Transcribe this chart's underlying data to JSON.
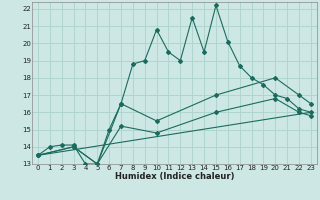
{
  "xlabel": "Humidex (Indice chaleur)",
  "bg_color": "#cde8e4",
  "grid_color": "#b0d4ce",
  "line_color": "#1a6b5e",
  "xlim": [
    -0.5,
    23.5
  ],
  "ylim": [
    13,
    22.4
  ],
  "xticks": [
    0,
    1,
    2,
    3,
    4,
    5,
    6,
    7,
    8,
    9,
    10,
    11,
    12,
    13,
    14,
    15,
    16,
    17,
    18,
    19,
    20,
    21,
    22,
    23
  ],
  "yticks": [
    13,
    14,
    15,
    16,
    17,
    18,
    19,
    20,
    21,
    22
  ],
  "line1_x": [
    0,
    1,
    2,
    3,
    4,
    5,
    6,
    7,
    8,
    9,
    10,
    11,
    12,
    13,
    14,
    15,
    16,
    17,
    18,
    19,
    20,
    21,
    22,
    23
  ],
  "line1_y": [
    13.5,
    14.0,
    14.1,
    14.1,
    13.0,
    13.0,
    15.0,
    16.5,
    18.8,
    19.0,
    20.8,
    19.5,
    19.0,
    21.5,
    19.5,
    22.2,
    20.1,
    18.7,
    18.0,
    17.6,
    17.0,
    16.8,
    16.2,
    16.0
  ],
  "line2_x": [
    0,
    3,
    5,
    7,
    10,
    15,
    20,
    22,
    23
  ],
  "line2_y": [
    13.5,
    14.0,
    13.0,
    16.5,
    15.5,
    17.0,
    18.0,
    17.0,
    16.5
  ],
  "line3_x": [
    0,
    3,
    5,
    7,
    10,
    15,
    20,
    22,
    23
  ],
  "line3_y": [
    13.5,
    14.0,
    13.0,
    15.2,
    14.8,
    16.0,
    16.8,
    16.0,
    15.8
  ],
  "line4_x": [
    0,
    23
  ],
  "line4_y": [
    13.5,
    16.0
  ]
}
